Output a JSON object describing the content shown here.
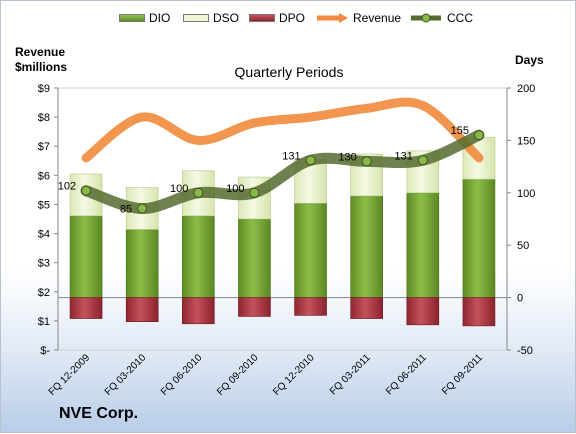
{
  "company": "NVE Corp.",
  "chart_data": {
    "type": "bar",
    "title": "Quarterly Periods",
    "ylabel_left_line1": "Revenue",
    "ylabel_left_line2": "$millions",
    "ylabel_right": "Days",
    "categories": [
      "FQ 12-2009",
      "FQ 03-2010",
      "FQ 06-2010",
      "FQ 09-2010",
      "FQ 12-2010",
      "FQ 03-2011",
      "FQ 06-2011",
      "FQ 09-2011"
    ],
    "left_axis": {
      "min": 0,
      "max": 9,
      "step": 1,
      "ticks": [
        "$-",
        "$1",
        "$2",
        "$3",
        "$4",
        "$5",
        "$6",
        "$7",
        "$8",
        "$9"
      ]
    },
    "right_axis": {
      "min": -50,
      "max": 200,
      "step": 50,
      "ticks": [
        "-50",
        "0",
        "50",
        "100",
        "150",
        "200"
      ]
    },
    "series": [
      {
        "name": "DIO",
        "axis": "right",
        "kind": "stacked-bar",
        "values": [
          78,
          65,
          78,
          75,
          90,
          97,
          100,
          113
        ]
      },
      {
        "name": "DSO",
        "axis": "right",
        "kind": "stacked-bar",
        "values": [
          40,
          40,
          43,
          40,
          42,
          40,
          40,
          40
        ]
      },
      {
        "name": "DPO",
        "axis": "right",
        "kind": "negative-bar",
        "values": [
          -20,
          -23,
          -25,
          -18,
          -17,
          -20,
          -26,
          -27
        ]
      },
      {
        "name": "Revenue",
        "axis": "left",
        "kind": "line",
        "values": [
          6.6,
          8.0,
          7.2,
          7.8,
          8.0,
          8.3,
          8.4,
          6.6
        ]
      },
      {
        "name": "CCC",
        "axis": "right",
        "kind": "line-with-markers",
        "values": [
          102,
          85,
          100,
          100,
          131,
          130,
          131,
          155
        ]
      }
    ],
    "ccc_labels": [
      "102",
      "85",
      "100",
      "100",
      "131",
      "130",
      "131",
      "155"
    ],
    "legend_position": "top",
    "grid": false,
    "colors": {
      "DIO": "#7ea83a",
      "DIO_dark": "#4f7a1a",
      "DSO": "#e4efc6",
      "DPO": "#b23a44",
      "Revenue": "#f08a3c",
      "CCC": "#556b2f",
      "CCC_marker": "#8ab84a"
    }
  }
}
